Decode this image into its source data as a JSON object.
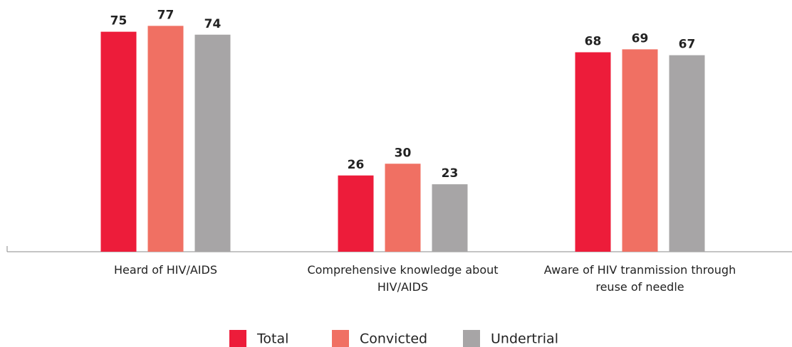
{
  "chart_data": {
    "type": "bar",
    "categories": [
      "Heard of HIV/AIDS",
      "Comprehensive knowledge about HIV/AIDS",
      "Aware of HIV tranmission through reuse of needle"
    ],
    "series": [
      {
        "name": "Total",
        "color": "#ed1c3a",
        "values": [
          75,
          26,
          68
        ]
      },
      {
        "name": "Convicted",
        "color": "#f07063",
        "values": [
          77,
          30,
          69
        ]
      },
      {
        "name": "Undertrial",
        "color": "#a7a5a6",
        "values": [
          74,
          23,
          67
        ]
      }
    ],
    "ylim": [
      0,
      80
    ]
  }
}
